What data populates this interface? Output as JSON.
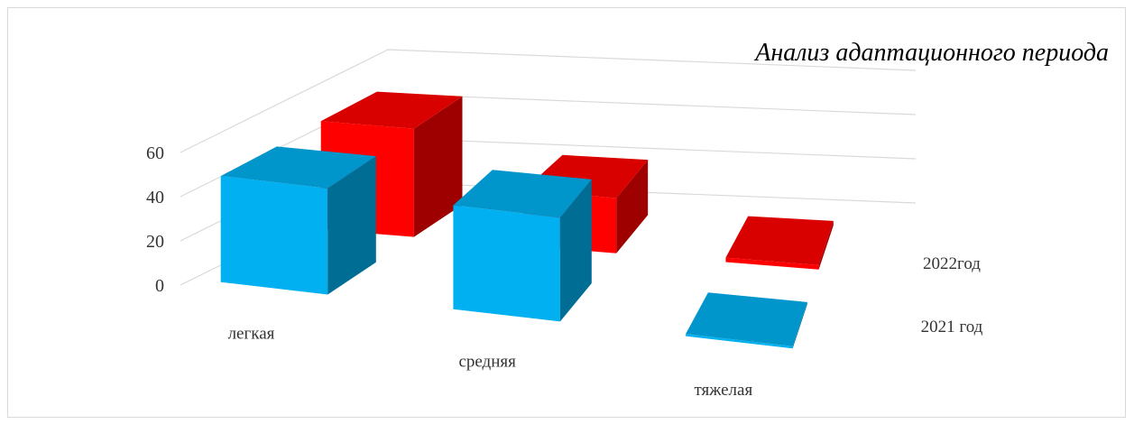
{
  "chart_data": {
    "type": "bar",
    "style": "3d-column",
    "title": "Анализ адаптационного периода",
    "categories": [
      "легкая",
      "средняя",
      "тяжелая"
    ],
    "series": [
      {
        "name": "2021 год",
        "values": [
          48,
          47,
          1
        ],
        "color": "#00b0f0"
      },
      {
        "name": "2022год",
        "values": [
          49,
          25,
          2
        ],
        "color": "#ff0000"
      }
    ],
    "yticks": [
      0,
      20,
      40,
      60
    ],
    "ylim": [
      0,
      70
    ],
    "grid": true,
    "legend": "none"
  }
}
